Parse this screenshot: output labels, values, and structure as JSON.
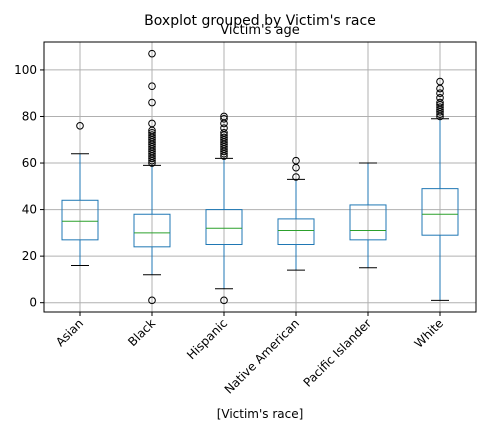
{
  "chart_data": {
    "type": "boxplot",
    "title": "Boxplot grouped by Victim's race",
    "subtitle": "Victim's age",
    "xlabel": "[Victim's race]",
    "ylabel": "",
    "ylim": [
      -4,
      112
    ],
    "yticks": [
      0,
      20,
      40,
      60,
      80,
      100
    ],
    "grid": true,
    "categories": [
      "Asian",
      "Black",
      "Hispanic",
      "Native American",
      "Pacific Islander",
      "White"
    ],
    "boxes": [
      {
        "category": "Asian",
        "whisker_low": 16,
        "q1": 27,
        "median": 35,
        "q3": 44,
        "whisker_high": 64,
        "outliers": [
          76
        ]
      },
      {
        "category": "Black",
        "whisker_low": 12,
        "q1": 24,
        "median": 30,
        "q3": 38,
        "whisker_high": 59,
        "outliers": [
          1,
          60,
          61,
          62,
          63,
          64,
          65,
          66,
          67,
          68,
          69,
          70,
          71,
          72,
          73,
          74,
          77,
          86,
          93,
          107
        ]
      },
      {
        "category": "Hispanic",
        "whisker_low": 6,
        "q1": 25,
        "median": 32,
        "q3": 40,
        "whisker_high": 62,
        "outliers": [
          1,
          63,
          64,
          65,
          66,
          67,
          68,
          69,
          70,
          71,
          72,
          73,
          75,
          77,
          79,
          80
        ]
      },
      {
        "category": "Native American",
        "whisker_low": 14,
        "q1": 25,
        "median": 31,
        "q3": 36,
        "whisker_high": 53,
        "outliers": [
          54,
          58,
          61
        ]
      },
      {
        "category": "Pacific Islander",
        "whisker_low": 15,
        "q1": 27,
        "median": 31,
        "q3": 42,
        "whisker_high": 60,
        "outliers": []
      },
      {
        "category": "White",
        "whisker_low": 1,
        "q1": 29,
        "median": 38,
        "q3": 49,
        "whisker_high": 79,
        "outliers": [
          80,
          81,
          82,
          83,
          84,
          85,
          86,
          88,
          90,
          92,
          95
        ]
      }
    ],
    "colors": {
      "box": "#1f77b4",
      "median": "#2ca02c",
      "grid": "#b0b0b0",
      "flier": "#000000",
      "axis": "#000000"
    }
  }
}
